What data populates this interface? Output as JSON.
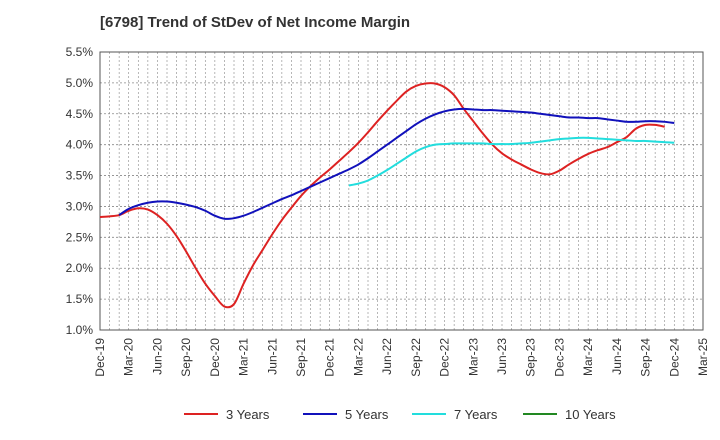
{
  "chart_data": {
    "type": "line",
    "title": "[6798]  Trend of StDev of Net Income Margin",
    "xlabel": "",
    "ylabel": "",
    "x_ticks": [
      "Dec-19",
      "Mar-20",
      "Jun-20",
      "Sep-20",
      "Dec-20",
      "Mar-21",
      "Jun-21",
      "Sep-21",
      "Dec-21",
      "Mar-22",
      "Jun-22",
      "Sep-22",
      "Dec-22",
      "Mar-23",
      "Jun-23",
      "Sep-23",
      "Dec-23",
      "Mar-24",
      "Jun-24",
      "Sep-24",
      "Dec-24",
      "Mar-25"
    ],
    "y_ticks": [
      "1.0%",
      "1.5%",
      "2.0%",
      "2.5%",
      "3.0%",
      "3.5%",
      "4.0%",
      "4.5%",
      "5.0%",
      "5.5%"
    ],
    "ylim": [
      1.0,
      5.5
    ],
    "grid": true,
    "legend_position": "bottom",
    "series": [
      {
        "name": "3 Years",
        "color": "#dd2222",
        "points": [
          [
            "Dec-19",
            2.83
          ],
          [
            "Jan-20",
            2.84
          ],
          [
            "Feb-20",
            2.86
          ],
          [
            "Mar-20",
            2.93
          ],
          [
            "Apr-20",
            2.97
          ],
          [
            "May-20",
            2.95
          ],
          [
            "Jun-20",
            2.86
          ],
          [
            "Jul-20",
            2.72
          ],
          [
            "Aug-20",
            2.52
          ],
          [
            "Sep-20",
            2.27
          ],
          [
            "Oct-20",
            2.0
          ],
          [
            "Nov-20",
            1.75
          ],
          [
            "Dec-20",
            1.55
          ],
          [
            "Jan-21",
            1.38
          ],
          [
            "Feb-21",
            1.42
          ],
          [
            "Mar-21",
            1.75
          ],
          [
            "Apr-21",
            2.05
          ],
          [
            "May-21",
            2.3
          ],
          [
            "Jun-21",
            2.55
          ],
          [
            "Jul-21",
            2.78
          ],
          [
            "Aug-21",
            2.98
          ],
          [
            "Sep-21",
            3.17
          ],
          [
            "Oct-21",
            3.33
          ],
          [
            "Nov-21",
            3.47
          ],
          [
            "Dec-21",
            3.6
          ],
          [
            "Jan-22",
            3.74
          ],
          [
            "Feb-22",
            3.88
          ],
          [
            "Mar-22",
            4.03
          ],
          [
            "Apr-22",
            4.2
          ],
          [
            "May-22",
            4.38
          ],
          [
            "Jun-22",
            4.55
          ],
          [
            "Jul-22",
            4.71
          ],
          [
            "Aug-22",
            4.86
          ],
          [
            "Sep-22",
            4.95
          ],
          [
            "Oct-22",
            4.99
          ],
          [
            "Nov-22",
            4.99
          ],
          [
            "Dec-22",
            4.93
          ],
          [
            "Jan-23",
            4.8
          ],
          [
            "Feb-23",
            4.58
          ],
          [
            "Mar-23",
            4.38
          ],
          [
            "Apr-23",
            4.18
          ],
          [
            "May-23",
            4.0
          ],
          [
            "Jun-23",
            3.86
          ],
          [
            "Jul-23",
            3.76
          ],
          [
            "Aug-23",
            3.68
          ],
          [
            "Sep-23",
            3.6
          ],
          [
            "Oct-23",
            3.54
          ],
          [
            "Nov-23",
            3.52
          ],
          [
            "Dec-23",
            3.58
          ],
          [
            "Jan-24",
            3.68
          ],
          [
            "Feb-24",
            3.77
          ],
          [
            "Mar-24",
            3.85
          ],
          [
            "Apr-24",
            3.91
          ],
          [
            "May-24",
            3.96
          ],
          [
            "Jun-24",
            4.04
          ],
          [
            "Jul-24",
            4.12
          ],
          [
            "Aug-24",
            4.26
          ],
          [
            "Sep-24",
            4.32
          ],
          [
            "Oct-24",
            4.32
          ],
          [
            "Nov-24",
            4.29
          ]
        ]
      },
      {
        "name": "5 Years",
        "color": "#1111bb",
        "points": [
          [
            "Feb-20",
            2.86
          ],
          [
            "Mar-20",
            2.96
          ],
          [
            "Apr-20",
            3.02
          ],
          [
            "May-20",
            3.06
          ],
          [
            "Jun-20",
            3.08
          ],
          [
            "Jul-20",
            3.08
          ],
          [
            "Aug-20",
            3.06
          ],
          [
            "Sep-20",
            3.03
          ],
          [
            "Oct-20",
            2.99
          ],
          [
            "Nov-20",
            2.93
          ],
          [
            "Dec-20",
            2.85
          ],
          [
            "Jan-21",
            2.8
          ],
          [
            "Feb-21",
            2.81
          ],
          [
            "Mar-21",
            2.85
          ],
          [
            "Apr-21",
            2.91
          ],
          [
            "May-21",
            2.98
          ],
          [
            "Jun-21",
            3.05
          ],
          [
            "Jul-21",
            3.12
          ],
          [
            "Aug-21",
            3.18
          ],
          [
            "Sep-21",
            3.25
          ],
          [
            "Oct-21",
            3.32
          ],
          [
            "Nov-21",
            3.39
          ],
          [
            "Dec-21",
            3.46
          ],
          [
            "Jan-22",
            3.53
          ],
          [
            "Feb-22",
            3.6
          ],
          [
            "Mar-22",
            3.68
          ],
          [
            "Apr-22",
            3.78
          ],
          [
            "May-22",
            3.89
          ],
          [
            "Jun-22",
            4.0
          ],
          [
            "Jul-22",
            4.11
          ],
          [
            "Aug-22",
            4.22
          ],
          [
            "Sep-22",
            4.33
          ],
          [
            "Oct-22",
            4.42
          ],
          [
            "Nov-22",
            4.49
          ],
          [
            "Dec-22",
            4.54
          ],
          [
            "Jan-23",
            4.57
          ],
          [
            "Feb-23",
            4.58
          ],
          [
            "Mar-23",
            4.57
          ],
          [
            "Apr-23",
            4.56
          ],
          [
            "May-23",
            4.56
          ],
          [
            "Jun-23",
            4.55
          ],
          [
            "Jul-23",
            4.54
          ],
          [
            "Aug-23",
            4.53
          ],
          [
            "Sep-23",
            4.52
          ],
          [
            "Oct-23",
            4.5
          ],
          [
            "Nov-23",
            4.48
          ],
          [
            "Dec-23",
            4.46
          ],
          [
            "Jan-24",
            4.44
          ],
          [
            "Feb-24",
            4.44
          ],
          [
            "Mar-24",
            4.43
          ],
          [
            "Apr-24",
            4.43
          ],
          [
            "May-24",
            4.41
          ],
          [
            "Jun-24",
            4.39
          ],
          [
            "Jul-24",
            4.37
          ],
          [
            "Aug-24",
            4.37
          ],
          [
            "Sep-24",
            4.38
          ],
          [
            "Oct-24",
            4.38
          ],
          [
            "Nov-24",
            4.37
          ],
          [
            "Dec-24",
            4.35
          ]
        ]
      },
      {
        "name": "7 Years",
        "color": "#22dddd",
        "points": [
          [
            "Feb-22",
            3.34
          ],
          [
            "Mar-22",
            3.37
          ],
          [
            "Apr-22",
            3.42
          ],
          [
            "May-22",
            3.5
          ],
          [
            "Jun-22",
            3.59
          ],
          [
            "Jul-22",
            3.69
          ],
          [
            "Aug-22",
            3.79
          ],
          [
            "Sep-22",
            3.89
          ],
          [
            "Oct-22",
            3.96
          ],
          [
            "Nov-22",
            4.0
          ],
          [
            "Dec-22",
            4.01
          ],
          [
            "Jan-23",
            4.02
          ],
          [
            "Feb-23",
            4.02
          ],
          [
            "Mar-23",
            4.02
          ],
          [
            "Apr-23",
            4.02
          ],
          [
            "May-23",
            4.01
          ],
          [
            "Jun-23",
            4.01
          ],
          [
            "Jul-23",
            4.01
          ],
          [
            "Aug-23",
            4.02
          ],
          [
            "Sep-23",
            4.03
          ],
          [
            "Oct-23",
            4.05
          ],
          [
            "Nov-23",
            4.07
          ],
          [
            "Dec-23",
            4.09
          ],
          [
            "Jan-24",
            4.1
          ],
          [
            "Feb-24",
            4.11
          ],
          [
            "Mar-24",
            4.11
          ],
          [
            "Apr-24",
            4.1
          ],
          [
            "May-24",
            4.09
          ],
          [
            "Jun-24",
            4.08
          ],
          [
            "Jul-24",
            4.07
          ],
          [
            "Aug-24",
            4.06
          ],
          [
            "Sep-24",
            4.06
          ],
          [
            "Oct-24",
            4.05
          ],
          [
            "Nov-24",
            4.04
          ],
          [
            "Dec-24",
            4.03
          ]
        ]
      },
      {
        "name": "10 Years",
        "color": "#228822",
        "points": []
      }
    ]
  }
}
